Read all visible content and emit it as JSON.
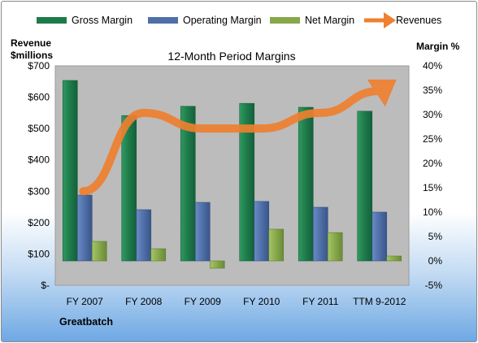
{
  "legend": {
    "gross": "Gross Margin",
    "operating": "Operating Margin",
    "net": "Net Margin",
    "revenues": "Revenues"
  },
  "left_axis_title_line1": "Revenue",
  "left_axis_title_line2": "$millions",
  "right_axis_title": "Margin %",
  "company": "Greatbatch",
  "colors": {
    "gross": "#1e7a4a",
    "operating": "#4f6fa8",
    "net": "#86a84a",
    "revenues": "#ee8030",
    "plot_bg": "#bcbcbc"
  },
  "chart_data": {
    "type": "bar",
    "title": "12-Month Period Margins",
    "categories": [
      "FY 2007",
      "FY 2008",
      "FY 2009",
      "FY 2010",
      "FY 2011",
      "TTM 9-2012"
    ],
    "series": [
      {
        "name": "Gross Margin",
        "axis": "right",
        "values": [
          37,
          29.8,
          31.7,
          32.3,
          31.5,
          30.7
        ]
      },
      {
        "name": "Operating Margin",
        "axis": "right",
        "values": [
          13.5,
          10.5,
          12,
          12.2,
          11,
          10
        ]
      },
      {
        "name": "Net Margin",
        "axis": "right",
        "values": [
          4,
          2.5,
          -1.5,
          6.5,
          5.8,
          1
        ]
      },
      {
        "name": "Revenues",
        "axis": "left",
        "type": "line",
        "values": [
          300,
          550,
          500,
          500,
          550,
          620
        ]
      }
    ],
    "left_axis": {
      "ylim": [
        0,
        700
      ],
      "ticks": [
        "$-",
        "$100",
        "$200",
        "$300",
        "$400",
        "$500",
        "$600",
        "$700"
      ]
    },
    "right_axis": {
      "ylim": [
        -5,
        40
      ],
      "ticks": [
        "-5%",
        "0%",
        "5%",
        "10%",
        "15%",
        "20%",
        "25%",
        "30%",
        "35%",
        "40%"
      ]
    },
    "grid": false,
    "legend_position": "top"
  }
}
